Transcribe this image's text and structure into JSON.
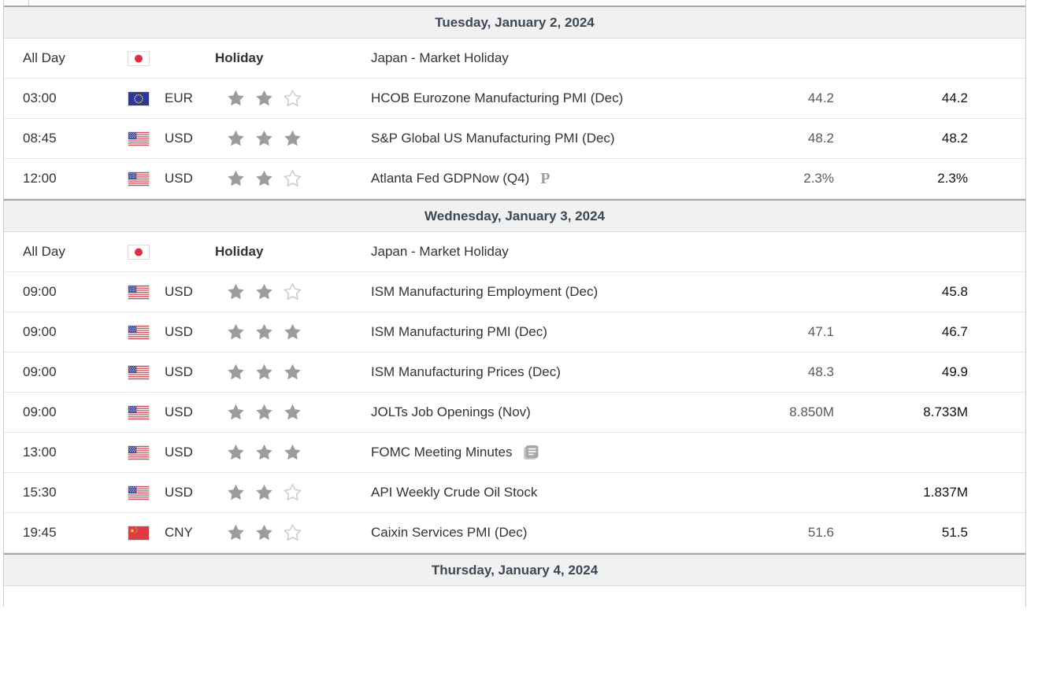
{
  "colors": {
    "date_header_text": "#3a4857",
    "date_header_bg": "#f1f1f1",
    "forecast_text": "#595959",
    "previous_text": "#111111",
    "row_border": "#e6e6e6",
    "star_filled": "#9c9c9c"
  },
  "days": [
    {
      "date_label": "Tuesday, January 2, 2024",
      "events": [
        {
          "time": "All Day",
          "flag": "japan",
          "holiday_label": "Holiday",
          "event": "Japan - Market Holiday",
          "forecast": "",
          "previous": ""
        },
        {
          "time": "03:00",
          "flag": "eurozone",
          "currency": "EUR",
          "importance": 2,
          "event": "HCOB Eurozone Manufacturing PMI (Dec)",
          "forecast": "44.2",
          "previous": "44.2"
        },
        {
          "time": "08:45",
          "flag": "usa",
          "currency": "USD",
          "importance": 3,
          "event": "S&P Global US Manufacturing PMI (Dec)",
          "forecast": "48.2",
          "previous": "48.2"
        },
        {
          "time": "12:00",
          "flag": "usa",
          "currency": "USD",
          "importance": 2,
          "event": "Atlanta Fed GDPNow (Q4)",
          "event_icon": "preliminary",
          "forecast": "2.3%",
          "previous": "2.3%"
        }
      ]
    },
    {
      "date_label": "Wednesday, January 3, 2024",
      "events": [
        {
          "time": "All Day",
          "flag": "japan",
          "holiday_label": "Holiday",
          "event": "Japan - Market Holiday",
          "forecast": "",
          "previous": ""
        },
        {
          "time": "09:00",
          "flag": "usa",
          "currency": "USD",
          "importance": 2,
          "event": "ISM Manufacturing Employment (Dec)",
          "forecast": "",
          "previous": "45.8"
        },
        {
          "time": "09:00",
          "flag": "usa",
          "currency": "USD",
          "importance": 3,
          "event": "ISM Manufacturing PMI (Dec)",
          "forecast": "47.1",
          "previous": "46.7"
        },
        {
          "time": "09:00",
          "flag": "usa",
          "currency": "USD",
          "importance": 3,
          "event": "ISM Manufacturing Prices (Dec)",
          "forecast": "48.3",
          "previous": "49.9"
        },
        {
          "time": "09:00",
          "flag": "usa",
          "currency": "USD",
          "importance": 3,
          "event": "JOLTs Job Openings (Nov)",
          "forecast": "8.850M",
          "previous": "8.733M"
        },
        {
          "time": "13:00",
          "flag": "usa",
          "currency": "USD",
          "importance": 3,
          "event": "FOMC Meeting Minutes",
          "event_icon": "report",
          "forecast": "",
          "previous": ""
        },
        {
          "time": "15:30",
          "flag": "usa",
          "currency": "USD",
          "importance": 2,
          "event": "API Weekly Crude Oil Stock",
          "forecast": "",
          "previous": "1.837M"
        },
        {
          "time": "19:45",
          "flag": "china",
          "currency": "CNY",
          "importance": 2,
          "event": "Caixin Services PMI (Dec)",
          "forecast": "51.6",
          "previous": "51.5"
        }
      ]
    },
    {
      "date_label": "Thursday, January 4, 2024",
      "events": []
    }
  ]
}
